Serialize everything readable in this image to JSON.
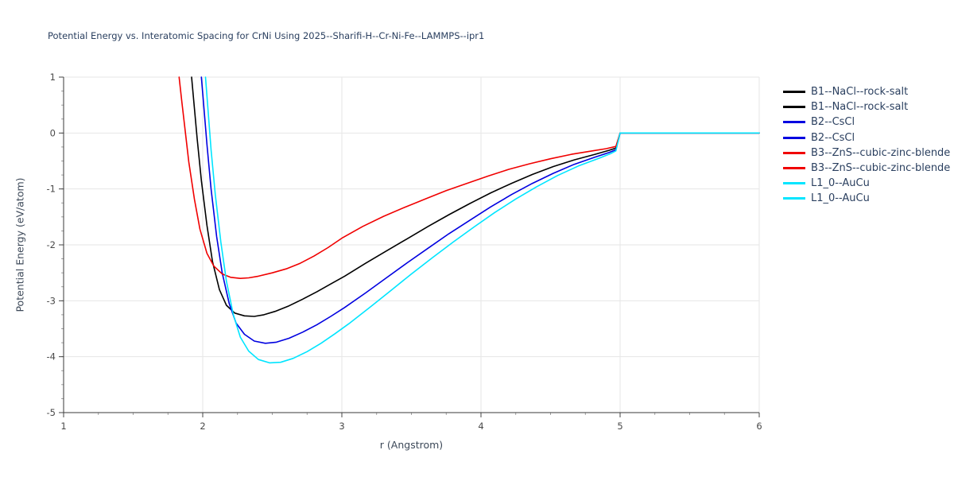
{
  "chart_data": {
    "type": "line",
    "title": "Potential Energy vs. Interatomic Spacing for CrNi Using 2025--Sharifi-H--Cr-Ni-Fe--LAMMPS--ipr1",
    "xlabel": "r (Angstrom)",
    "ylabel": "Potential Energy (eV/atom)",
    "xlim": [
      1,
      6
    ],
    "ylim": [
      -5,
      1
    ],
    "x_ticks": [
      1,
      2,
      3,
      4,
      5,
      6
    ],
    "y_ticks": [
      -5,
      -4,
      -3,
      -2,
      -1,
      0,
      1
    ],
    "grid": true,
    "legend_position": "right",
    "colors": {
      "black": "#000000",
      "blue": "#0000e0",
      "red": "#f00000",
      "cyan": "#00e5ff",
      "grid": "#e6e6e6",
      "axis": "#3a3a3a",
      "text": "#2a3f5f"
    },
    "series": [
      {
        "name": "B1--NaCl--rock-salt",
        "color": "#000000",
        "points": [
          [
            1.92,
            1.0
          ],
          [
            1.94,
            0.45
          ],
          [
            1.96,
            -0.1
          ],
          [
            1.99,
            -0.85
          ],
          [
            2.03,
            -1.65
          ],
          [
            2.07,
            -2.3
          ],
          [
            2.12,
            -2.8
          ],
          [
            2.17,
            -3.08
          ],
          [
            2.23,
            -3.22
          ],
          [
            2.3,
            -3.27
          ],
          [
            2.37,
            -3.28
          ],
          [
            2.44,
            -3.25
          ],
          [
            2.52,
            -3.19
          ],
          [
            2.62,
            -3.09
          ],
          [
            2.72,
            -2.97
          ],
          [
            2.82,
            -2.84
          ],
          [
            2.92,
            -2.7
          ],
          [
            3.02,
            -2.56
          ],
          [
            3.17,
            -2.33
          ],
          [
            3.32,
            -2.11
          ],
          [
            3.47,
            -1.89
          ],
          [
            3.62,
            -1.67
          ],
          [
            3.77,
            -1.46
          ],
          [
            3.92,
            -1.26
          ],
          [
            4.07,
            -1.07
          ],
          [
            4.22,
            -0.9
          ],
          [
            4.37,
            -0.74
          ],
          [
            4.52,
            -0.6
          ],
          [
            4.67,
            -0.48
          ],
          [
            4.82,
            -0.38
          ],
          [
            4.92,
            -0.31
          ],
          [
            4.97,
            -0.27
          ],
          [
            5.0,
            0.0
          ],
          [
            6.0,
            0.0
          ]
        ]
      },
      {
        "name": "B2--CsCl",
        "color": "#0000e0",
        "points": [
          [
            1.99,
            1.0
          ],
          [
            2.01,
            0.4
          ],
          [
            2.03,
            -0.2
          ],
          [
            2.06,
            -1.0
          ],
          [
            2.1,
            -1.85
          ],
          [
            2.14,
            -2.5
          ],
          [
            2.19,
            -3.05
          ],
          [
            2.24,
            -3.4
          ],
          [
            2.3,
            -3.6
          ],
          [
            2.37,
            -3.72
          ],
          [
            2.45,
            -3.76
          ],
          [
            2.53,
            -3.74
          ],
          [
            2.62,
            -3.67
          ],
          [
            2.72,
            -3.56
          ],
          [
            2.82,
            -3.43
          ],
          [
            2.92,
            -3.28
          ],
          [
            3.02,
            -3.12
          ],
          [
            3.17,
            -2.86
          ],
          [
            3.32,
            -2.59
          ],
          [
            3.47,
            -2.32
          ],
          [
            3.62,
            -2.06
          ],
          [
            3.77,
            -1.8
          ],
          [
            3.92,
            -1.56
          ],
          [
            4.07,
            -1.32
          ],
          [
            4.22,
            -1.1
          ],
          [
            4.37,
            -0.9
          ],
          [
            4.52,
            -0.72
          ],
          [
            4.67,
            -0.56
          ],
          [
            4.82,
            -0.43
          ],
          [
            4.92,
            -0.35
          ],
          [
            4.97,
            -0.3
          ],
          [
            5.0,
            0.0
          ],
          [
            6.0,
            0.0
          ]
        ]
      },
      {
        "name": "B3--ZnS--cubic-zinc-blende",
        "color": "#f00000",
        "points": [
          [
            1.83,
            1.0
          ],
          [
            1.85,
            0.55
          ],
          [
            1.87,
            0.12
          ],
          [
            1.9,
            -0.52
          ],
          [
            1.94,
            -1.18
          ],
          [
            1.98,
            -1.72
          ],
          [
            2.03,
            -2.15
          ],
          [
            2.08,
            -2.38
          ],
          [
            2.14,
            -2.52
          ],
          [
            2.2,
            -2.58
          ],
          [
            2.27,
            -2.6
          ],
          [
            2.33,
            -2.59
          ],
          [
            2.4,
            -2.56
          ],
          [
            2.5,
            -2.5
          ],
          [
            2.6,
            -2.43
          ],
          [
            2.7,
            -2.33
          ],
          [
            2.8,
            -2.2
          ],
          [
            2.9,
            -2.05
          ],
          [
            3.0,
            -1.88
          ],
          [
            3.15,
            -1.67
          ],
          [
            3.3,
            -1.49
          ],
          [
            3.45,
            -1.33
          ],
          [
            3.6,
            -1.18
          ],
          [
            3.75,
            -1.03
          ],
          [
            3.9,
            -0.9
          ],
          [
            4.05,
            -0.77
          ],
          [
            4.2,
            -0.65
          ],
          [
            4.35,
            -0.55
          ],
          [
            4.5,
            -0.46
          ],
          [
            4.65,
            -0.38
          ],
          [
            4.8,
            -0.32
          ],
          [
            4.9,
            -0.28
          ],
          [
            4.97,
            -0.24
          ],
          [
            5.0,
            0.0
          ],
          [
            6.0,
            0.0
          ]
        ]
      },
      {
        "name": "L1_0--AuCu",
        "color": "#00e5ff",
        "points": [
          [
            2.02,
            1.0
          ],
          [
            2.04,
            0.35
          ],
          [
            2.06,
            -0.3
          ],
          [
            2.09,
            -1.1
          ],
          [
            2.13,
            -1.95
          ],
          [
            2.17,
            -2.65
          ],
          [
            2.22,
            -3.25
          ],
          [
            2.27,
            -3.65
          ],
          [
            2.33,
            -3.9
          ],
          [
            2.4,
            -4.05
          ],
          [
            2.48,
            -4.11
          ],
          [
            2.56,
            -4.1
          ],
          [
            2.65,
            -4.03
          ],
          [
            2.75,
            -3.91
          ],
          [
            2.85,
            -3.76
          ],
          [
            2.95,
            -3.59
          ],
          [
            3.05,
            -3.41
          ],
          [
            3.2,
            -3.12
          ],
          [
            3.35,
            -2.82
          ],
          [
            3.5,
            -2.52
          ],
          [
            3.65,
            -2.23
          ],
          [
            3.8,
            -1.95
          ],
          [
            3.95,
            -1.68
          ],
          [
            4.1,
            -1.42
          ],
          [
            4.25,
            -1.18
          ],
          [
            4.4,
            -0.96
          ],
          [
            4.55,
            -0.76
          ],
          [
            4.7,
            -0.59
          ],
          [
            4.85,
            -0.45
          ],
          [
            4.93,
            -0.37
          ],
          [
            4.97,
            -0.32
          ],
          [
            5.0,
            0.0
          ],
          [
            6.0,
            0.0
          ]
        ]
      }
    ],
    "legend": [
      {
        "label": "B1--NaCl--rock-salt",
        "color": "#000000"
      },
      {
        "label": "B1--NaCl--rock-salt",
        "color": "#000000"
      },
      {
        "label": "B2--CsCl",
        "color": "#0000e0"
      },
      {
        "label": "B2--CsCl",
        "color": "#0000e0"
      },
      {
        "label": "B3--ZnS--cubic-zinc-blende",
        "color": "#f00000"
      },
      {
        "label": "B3--ZnS--cubic-zinc-blende",
        "color": "#f00000"
      },
      {
        "label": "L1_0--AuCu",
        "color": "#00e5ff"
      },
      {
        "label": "L1_0--AuCu",
        "color": "#00e5ff"
      }
    ]
  }
}
